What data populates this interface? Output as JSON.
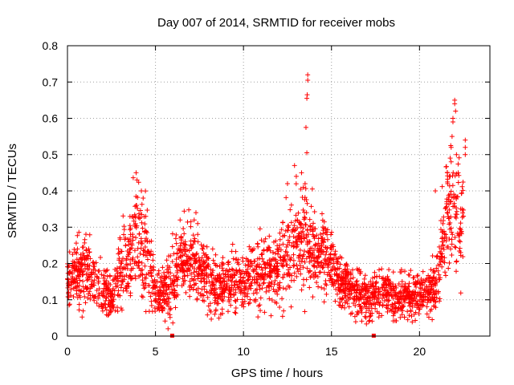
{
  "chart_data": {
    "type": "scatter",
    "title": "Day 007 of 2014, SRMTID for receiver mobs",
    "xlabel": "GPS time / hours",
    "ylabel": "SRMTID / TECUs",
    "xlim": [
      0,
      24
    ],
    "ylim": [
      0,
      0.8
    ],
    "xticks": [
      0,
      5,
      10,
      15,
      20
    ],
    "xtick_labels": [
      "0",
      "5",
      "10",
      "15",
      "20"
    ],
    "yticks": [
      0,
      0.1,
      0.2,
      0.3,
      0.4,
      0.5,
      0.6,
      0.7,
      0.8
    ],
    "ytick_labels": [
      "0",
      "0.1",
      "0.2",
      "0.3",
      "0.4",
      "0.5",
      "0.6",
      "0.7",
      "0.8"
    ],
    "grid": true,
    "marker": "plus",
    "color": "#ff0000",
    "series": [
      {
        "name": "mobs",
        "trend": [
          [
            0.0,
            0.15,
            0.04
          ],
          [
            0.5,
            0.17,
            0.05
          ],
          [
            1.0,
            0.19,
            0.07
          ],
          [
            1.5,
            0.15,
            0.05
          ],
          [
            2.0,
            0.14,
            0.05
          ],
          [
            2.5,
            0.1,
            0.04
          ],
          [
            3.0,
            0.18,
            0.07
          ],
          [
            3.5,
            0.22,
            0.08
          ],
          [
            4.0,
            0.28,
            0.1
          ],
          [
            4.5,
            0.2,
            0.09
          ],
          [
            5.0,
            0.13,
            0.05
          ],
          [
            5.5,
            0.12,
            0.05
          ],
          [
            6.0,
            0.14,
            0.06
          ],
          [
            6.5,
            0.23,
            0.07
          ],
          [
            7.0,
            0.2,
            0.06
          ],
          [
            7.5,
            0.18,
            0.06
          ],
          [
            8.0,
            0.15,
            0.05
          ],
          [
            8.5,
            0.14,
            0.05
          ],
          [
            9.0,
            0.14,
            0.05
          ],
          [
            9.5,
            0.15,
            0.05
          ],
          [
            10.0,
            0.14,
            0.05
          ],
          [
            10.5,
            0.17,
            0.06
          ],
          [
            11.0,
            0.2,
            0.07
          ],
          [
            11.5,
            0.17,
            0.06
          ],
          [
            12.0,
            0.2,
            0.07
          ],
          [
            12.5,
            0.22,
            0.08
          ],
          [
            13.0,
            0.26,
            0.09
          ],
          [
            13.5,
            0.28,
            0.1
          ],
          [
            14.0,
            0.22,
            0.08
          ],
          [
            14.5,
            0.24,
            0.07
          ],
          [
            15.0,
            0.19,
            0.06
          ],
          [
            15.5,
            0.15,
            0.05
          ],
          [
            16.0,
            0.13,
            0.04
          ],
          [
            16.5,
            0.12,
            0.04
          ],
          [
            17.0,
            0.11,
            0.04
          ],
          [
            17.5,
            0.12,
            0.04
          ],
          [
            18.0,
            0.12,
            0.04
          ],
          [
            18.5,
            0.1,
            0.04
          ],
          [
            19.0,
            0.11,
            0.04
          ],
          [
            19.5,
            0.11,
            0.04
          ],
          [
            20.0,
            0.11,
            0.04
          ],
          [
            20.5,
            0.12,
            0.04
          ],
          [
            21.0,
            0.14,
            0.05
          ],
          [
            21.5,
            0.34,
            0.1
          ],
          [
            22.0,
            0.33,
            0.11
          ],
          [
            22.5,
            0.32,
            0.1
          ]
        ],
        "highlights": [
          [
            3.9,
            0.45
          ],
          [
            3.95,
            0.43
          ],
          [
            4.2,
            0.4
          ],
          [
            4.3,
            0.38
          ],
          [
            6.4,
            0.32
          ],
          [
            7.2,
            0.32
          ],
          [
            7.3,
            0.34
          ],
          [
            7.4,
            0.31
          ],
          [
            12.5,
            0.42
          ],
          [
            12.9,
            0.47
          ],
          [
            13.0,
            0.44
          ],
          [
            13.3,
            0.45
          ],
          [
            13.55,
            0.575
          ],
          [
            13.6,
            0.505
          ],
          [
            13.6,
            0.655
          ],
          [
            13.62,
            0.665
          ],
          [
            13.65,
            0.705
          ],
          [
            13.65,
            0.72
          ],
          [
            13.4,
            0.41
          ],
          [
            13.5,
            0.42
          ],
          [
            20.9,
            0.4
          ],
          [
            21.6,
            0.42
          ],
          [
            21.7,
            0.44
          ],
          [
            21.8,
            0.48
          ],
          [
            21.8,
            0.52
          ],
          [
            21.85,
            0.55
          ],
          [
            21.9,
            0.59
          ],
          [
            21.9,
            0.6
          ],
          [
            22.0,
            0.64
          ],
          [
            22.0,
            0.65
          ],
          [
            22.05,
            0.62
          ],
          [
            22.1,
            0.5
          ],
          [
            22.2,
            0.45
          ],
          [
            22.6,
            0.52
          ],
          [
            22.6,
            0.54
          ],
          [
            22.6,
            0.5
          ]
        ],
        "low_markers": [
          [
            5.95,
            0.0
          ],
          [
            17.4,
            0.0
          ]
        ]
      }
    ]
  }
}
